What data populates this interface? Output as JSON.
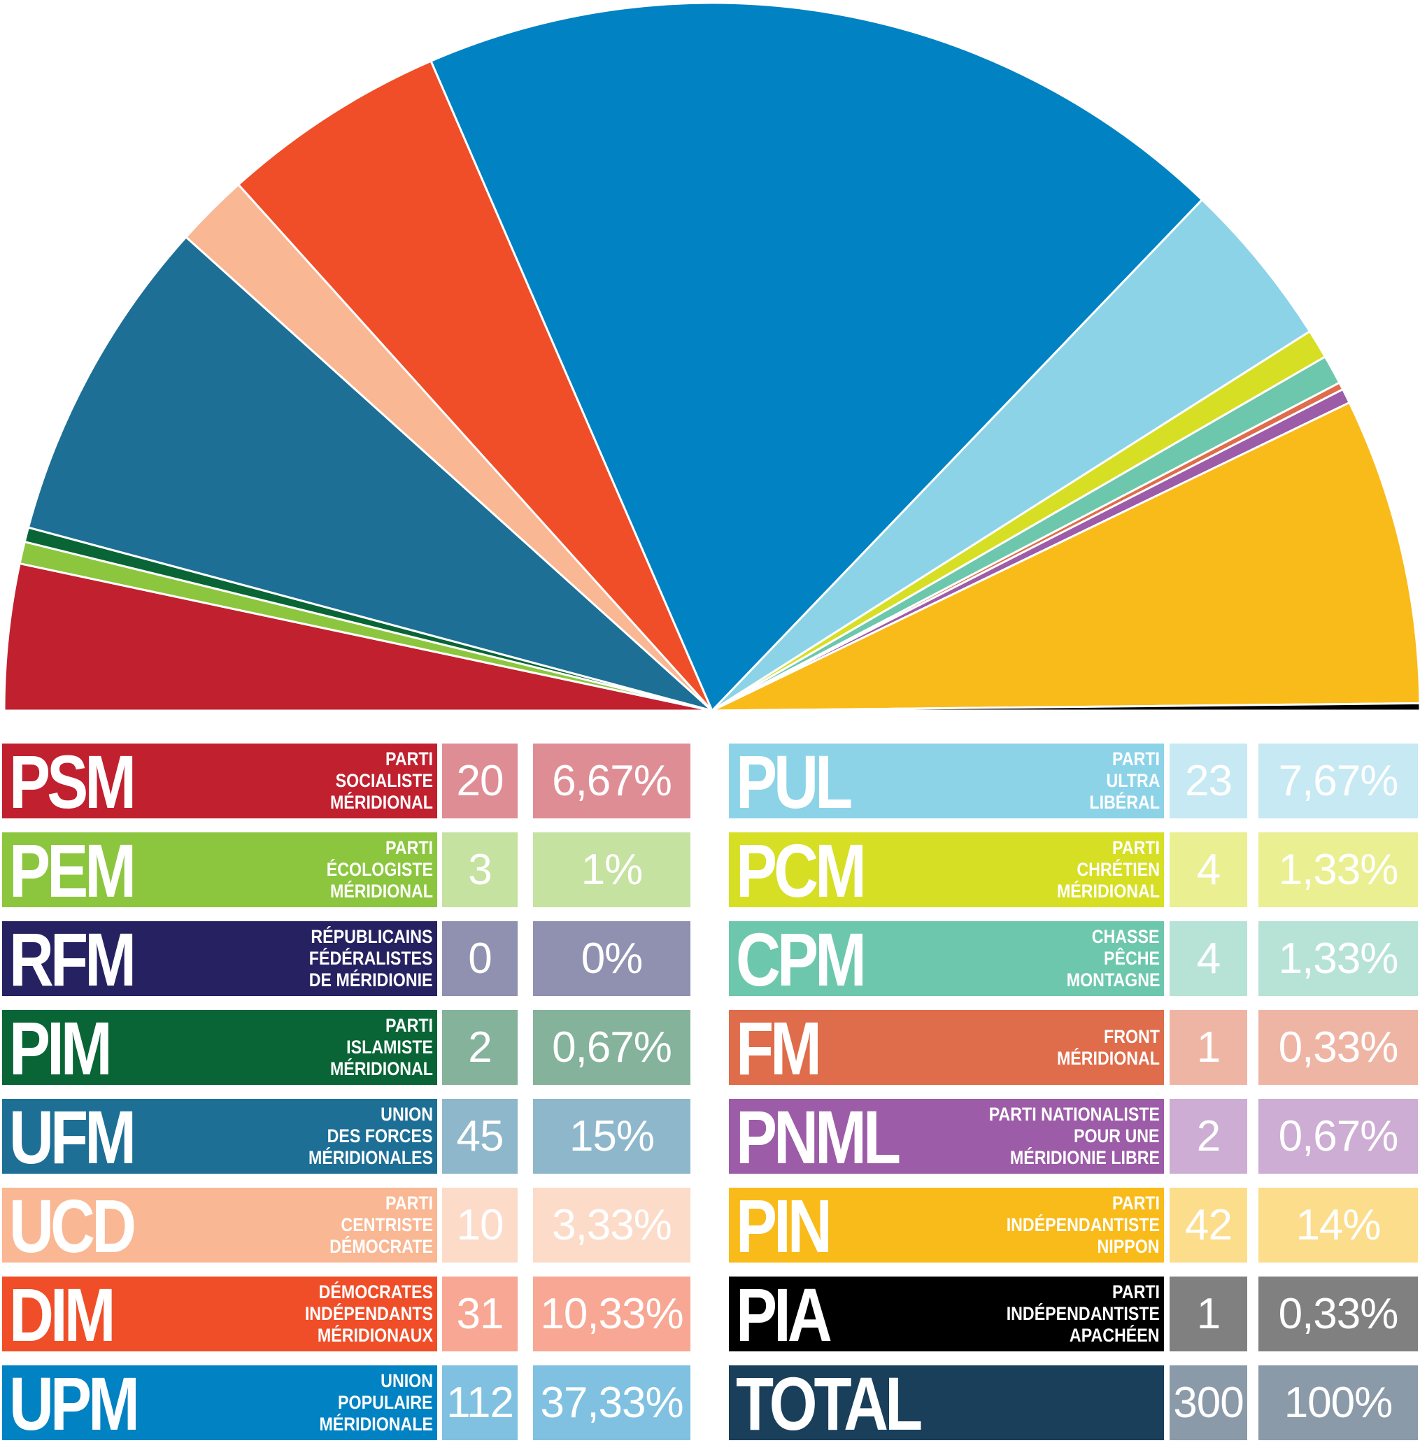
{
  "chart_data": {
    "type": "pie",
    "subtype": "hemicycle",
    "total": {
      "abbr": "TOTAL",
      "seats": "300",
      "percent": "100%",
      "color": "#193f5a",
      "seat_bg": "#8b9aa8",
      "pct_bg": "#8b9aa8"
    },
    "left_parties": [
      {
        "abbr": "PSM",
        "lines": [
          "PARTI",
          "SOCIALISTE",
          "MÉRIDIONAL"
        ],
        "seats": 20,
        "seats_label": "20",
        "percent": "6,67%",
        "color": "#c1202f",
        "seat_bg": "#df8d95",
        "pct_bg": "#df8d95"
      },
      {
        "abbr": "PEM",
        "lines": [
          "PARTI",
          "ÉCOLOGISTE",
          "MÉRIDIONAL"
        ],
        "seats": 3,
        "seats_label": "3",
        "percent": "1%",
        "color": "#8cc63f",
        "seat_bg": "#c5e2a0",
        "pct_bg": "#c5e2a0"
      },
      {
        "abbr": "RFM",
        "lines": [
          "RÉPUBLICAINS",
          "FÉDÉRALISTES",
          "DE MÉRIDIONIE"
        ],
        "seats": 0,
        "seats_label": "0",
        "percent": "0%",
        "color": "#262262",
        "seat_bg": "#9090b0",
        "pct_bg": "#9090b0"
      },
      {
        "abbr": "PIM",
        "lines": [
          "PARTI",
          "ISLAMISTE",
          "MÉRIDIONAL"
        ],
        "seats": 2,
        "seats_label": "2",
        "percent": "0,67%",
        "color": "#096536",
        "seat_bg": "#84b29b",
        "pct_bg": "#84b29b"
      },
      {
        "abbr": "UFM",
        "lines": [
          "UNION",
          "DES FORCES",
          "MÉRIDIONALES"
        ],
        "seats": 45,
        "seats_label": "45",
        "percent": "15%",
        "color": "#1d6f96",
        "seat_bg": "#8eb7cb",
        "pct_bg": "#8eb7cb"
      },
      {
        "abbr": "UCD",
        "lines": [
          "PARTI",
          "CENTRISTE",
          "DÉMOCRATE"
        ],
        "seats": 10,
        "seats_label": "10",
        "percent": "3,33%",
        "color": "#f9b793",
        "seat_bg": "#fcdbc9",
        "pct_bg": "#fcdbc9"
      },
      {
        "abbr": "DIM",
        "lines": [
          "DÉMOCRATES",
          "INDÉPENDANTS",
          "MÉRIDIONAUX"
        ],
        "seats": 31,
        "seats_label": "31",
        "percent": "10,33%",
        "color": "#f04e28",
        "seat_bg": "#f7a793",
        "pct_bg": "#f7a793"
      },
      {
        "abbr": "UPM",
        "lines": [
          "UNION",
          "POPULAIRE",
          "MÉRIDIONALE"
        ],
        "seats": 112,
        "seats_label": "112",
        "percent": "37,33%",
        "color": "#0182c3",
        "seat_bg": "#80c1e1",
        "pct_bg": "#80c1e1"
      }
    ],
    "right_parties": [
      {
        "abbr": "PUL",
        "lines": [
          "PARTI",
          "ULTRA",
          "LIBÉRAL"
        ],
        "seats": 23,
        "seats_label": "23",
        "percent": "7,67%",
        "color": "#8cd3e8",
        "seat_bg": "#c6e9f3",
        "pct_bg": "#c6e9f3"
      },
      {
        "abbr": "PCM",
        "lines": [
          "PARTI",
          "CHRÉTIEN",
          "MÉRIDIONAL"
        ],
        "seats": 4,
        "seats_label": "4",
        "percent": "1,33%",
        "color": "#d6df23",
        "seat_bg": "#eaef91",
        "pct_bg": "#eaef91"
      },
      {
        "abbr": "CPM",
        "lines": [
          "CHASSE",
          "PÊCHE",
          "MONTAGNE"
        ],
        "seats": 4,
        "seats_label": "4",
        "percent": "1,33%",
        "color": "#6dc7ac",
        "seat_bg": "#b6e3d5",
        "pct_bg": "#b6e3d5"
      },
      {
        "abbr": "FM",
        "lines": [
          "FRONT",
          "MÉRIDIONAL"
        ],
        "seats": 1,
        "seats_label": "1",
        "percent": "0,33%",
        "color": "#df6c4a",
        "seat_bg": "#efb5a4",
        "pct_bg": "#efb5a4"
      },
      {
        "abbr": "PNML",
        "lines": [
          "PARTI NATIONALISTE",
          "POUR UNE",
          "MÉRIDIONIE LIBRE"
        ],
        "seats": 2,
        "seats_label": "2",
        "percent": "0,67%",
        "color": "#9c5ca7",
        "seat_bg": "#cdadd3",
        "pct_bg": "#cdadd3"
      },
      {
        "abbr": "PIN",
        "lines": [
          "PARTI",
          "INDÉPENDANTISTE",
          "NIPPON"
        ],
        "seats": 42,
        "seats_label": "42",
        "percent": "14%",
        "color": "#f9bb1a",
        "seat_bg": "#fcdd8c",
        "pct_bg": "#fcdd8c"
      },
      {
        "abbr": "PIA",
        "lines": [
          "PARTI",
          "INDÉPENDANTISTE",
          "APACHÉEN"
        ],
        "seats": 1,
        "seats_label": "1",
        "percent": "0,33%",
        "color": "#000000",
        "seat_bg": "#808080",
        "pct_bg": "#808080"
      }
    ]
  }
}
